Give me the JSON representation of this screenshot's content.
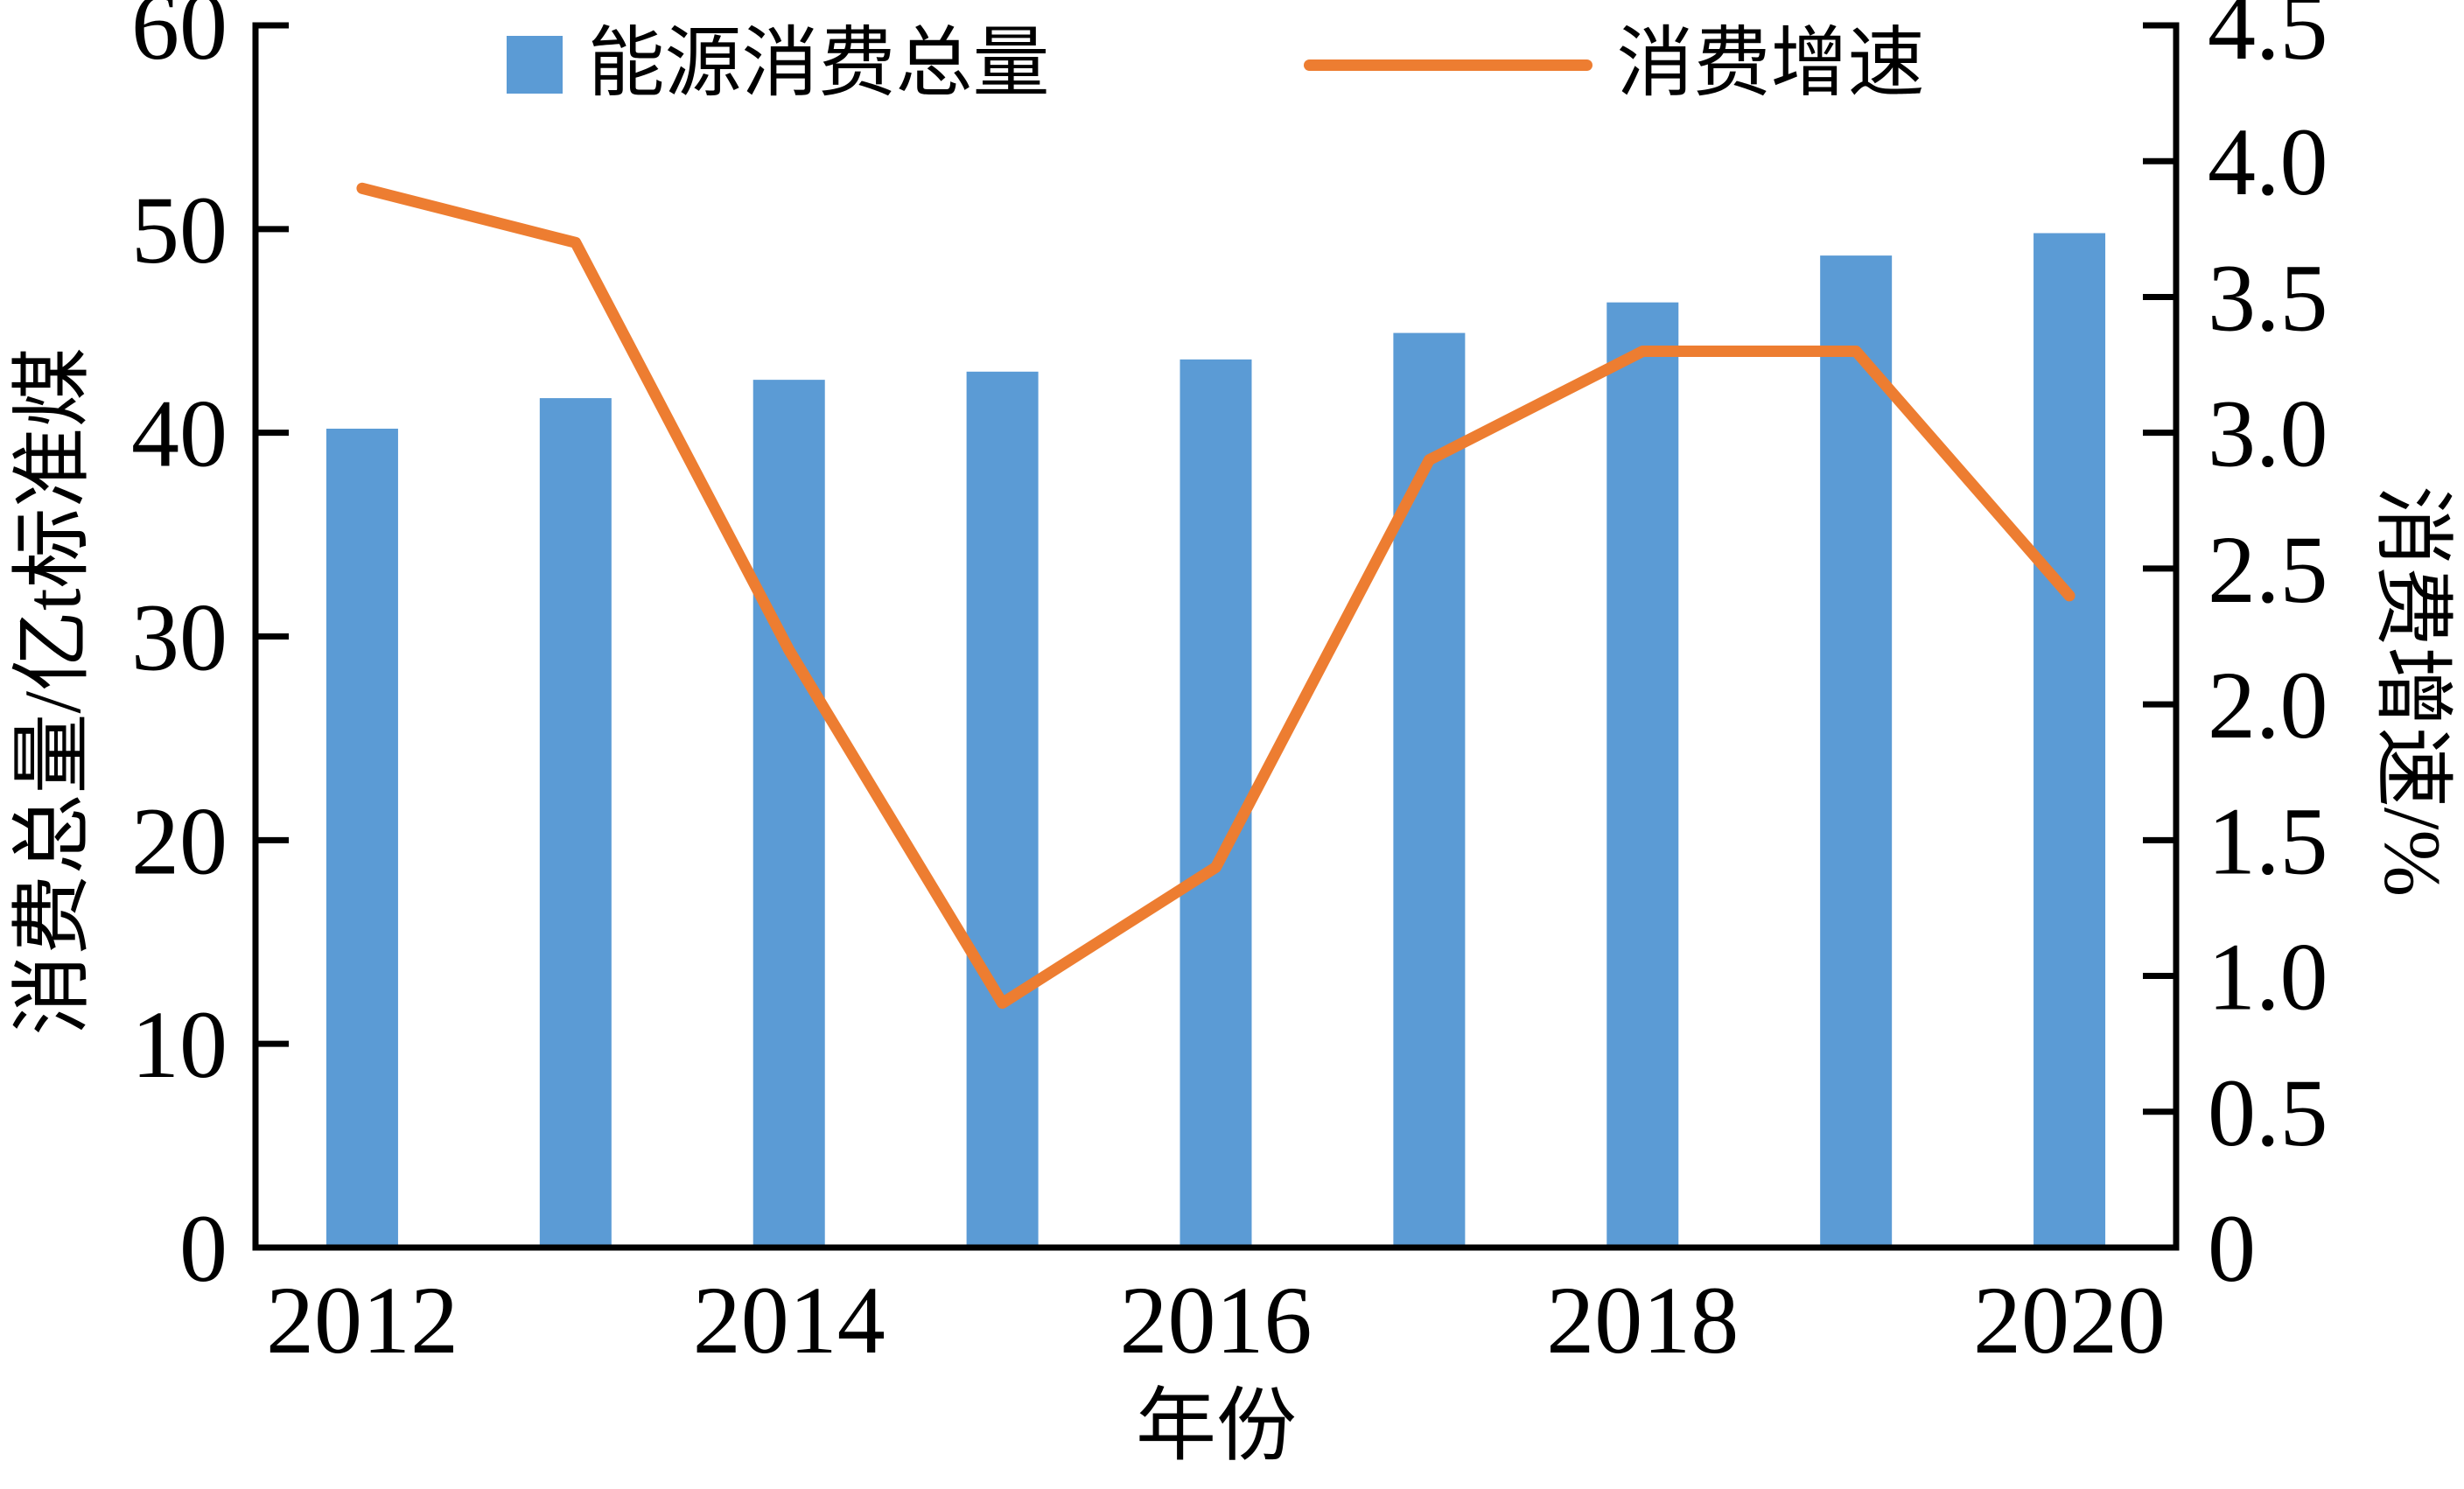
{
  "figure": {
    "background": "#ffffff",
    "text_color": "#000000"
  },
  "legend": {
    "items": [
      {
        "label": "能源消费总量",
        "swatch": "bar",
        "color": "#5B9BD5"
      },
      {
        "label": "消费增速",
        "swatch": "line",
        "color": "#ED7D31"
      }
    ]
  },
  "axes": {
    "left": {
      "label": "消费总量/亿t标准煤"
    },
    "right": {
      "label": "消费增速/%"
    },
    "x": {
      "label": "年份"
    }
  },
  "chart_data": {
    "type": "combo",
    "categories": [
      "2012",
      "2013",
      "2014",
      "2015",
      "2016",
      "2017",
      "2018",
      "2019",
      "2020"
    ],
    "series": [
      {
        "name": "能源消费总量",
        "type": "bar",
        "axis": "left",
        "color": "#5B9BD5",
        "values": [
          40.2,
          41.7,
          42.6,
          43.0,
          43.6,
          44.9,
          46.4,
          48.7,
          49.8
        ]
      },
      {
        "name": "消费增速",
        "type": "line",
        "axis": "right",
        "color": "#ED7D31",
        "values": [
          3.9,
          3.7,
          2.2,
          0.9,
          1.4,
          2.9,
          3.3,
          3.3,
          2.4
        ]
      }
    ],
    "left_axis": {
      "label": "消费总量/亿t标准煤",
      "min": 0,
      "max": 60,
      "step": 10
    },
    "right_axis": {
      "label": "消费增速/%",
      "min": 0,
      "max": 4.5,
      "step": 0.5
    },
    "x_axis": {
      "label": "年份",
      "tick_labels": [
        "2012",
        "2014",
        "2016",
        "2018",
        "2020"
      ]
    },
    "grid": false,
    "legend_position": "top",
    "axis_color": "#000000"
  }
}
